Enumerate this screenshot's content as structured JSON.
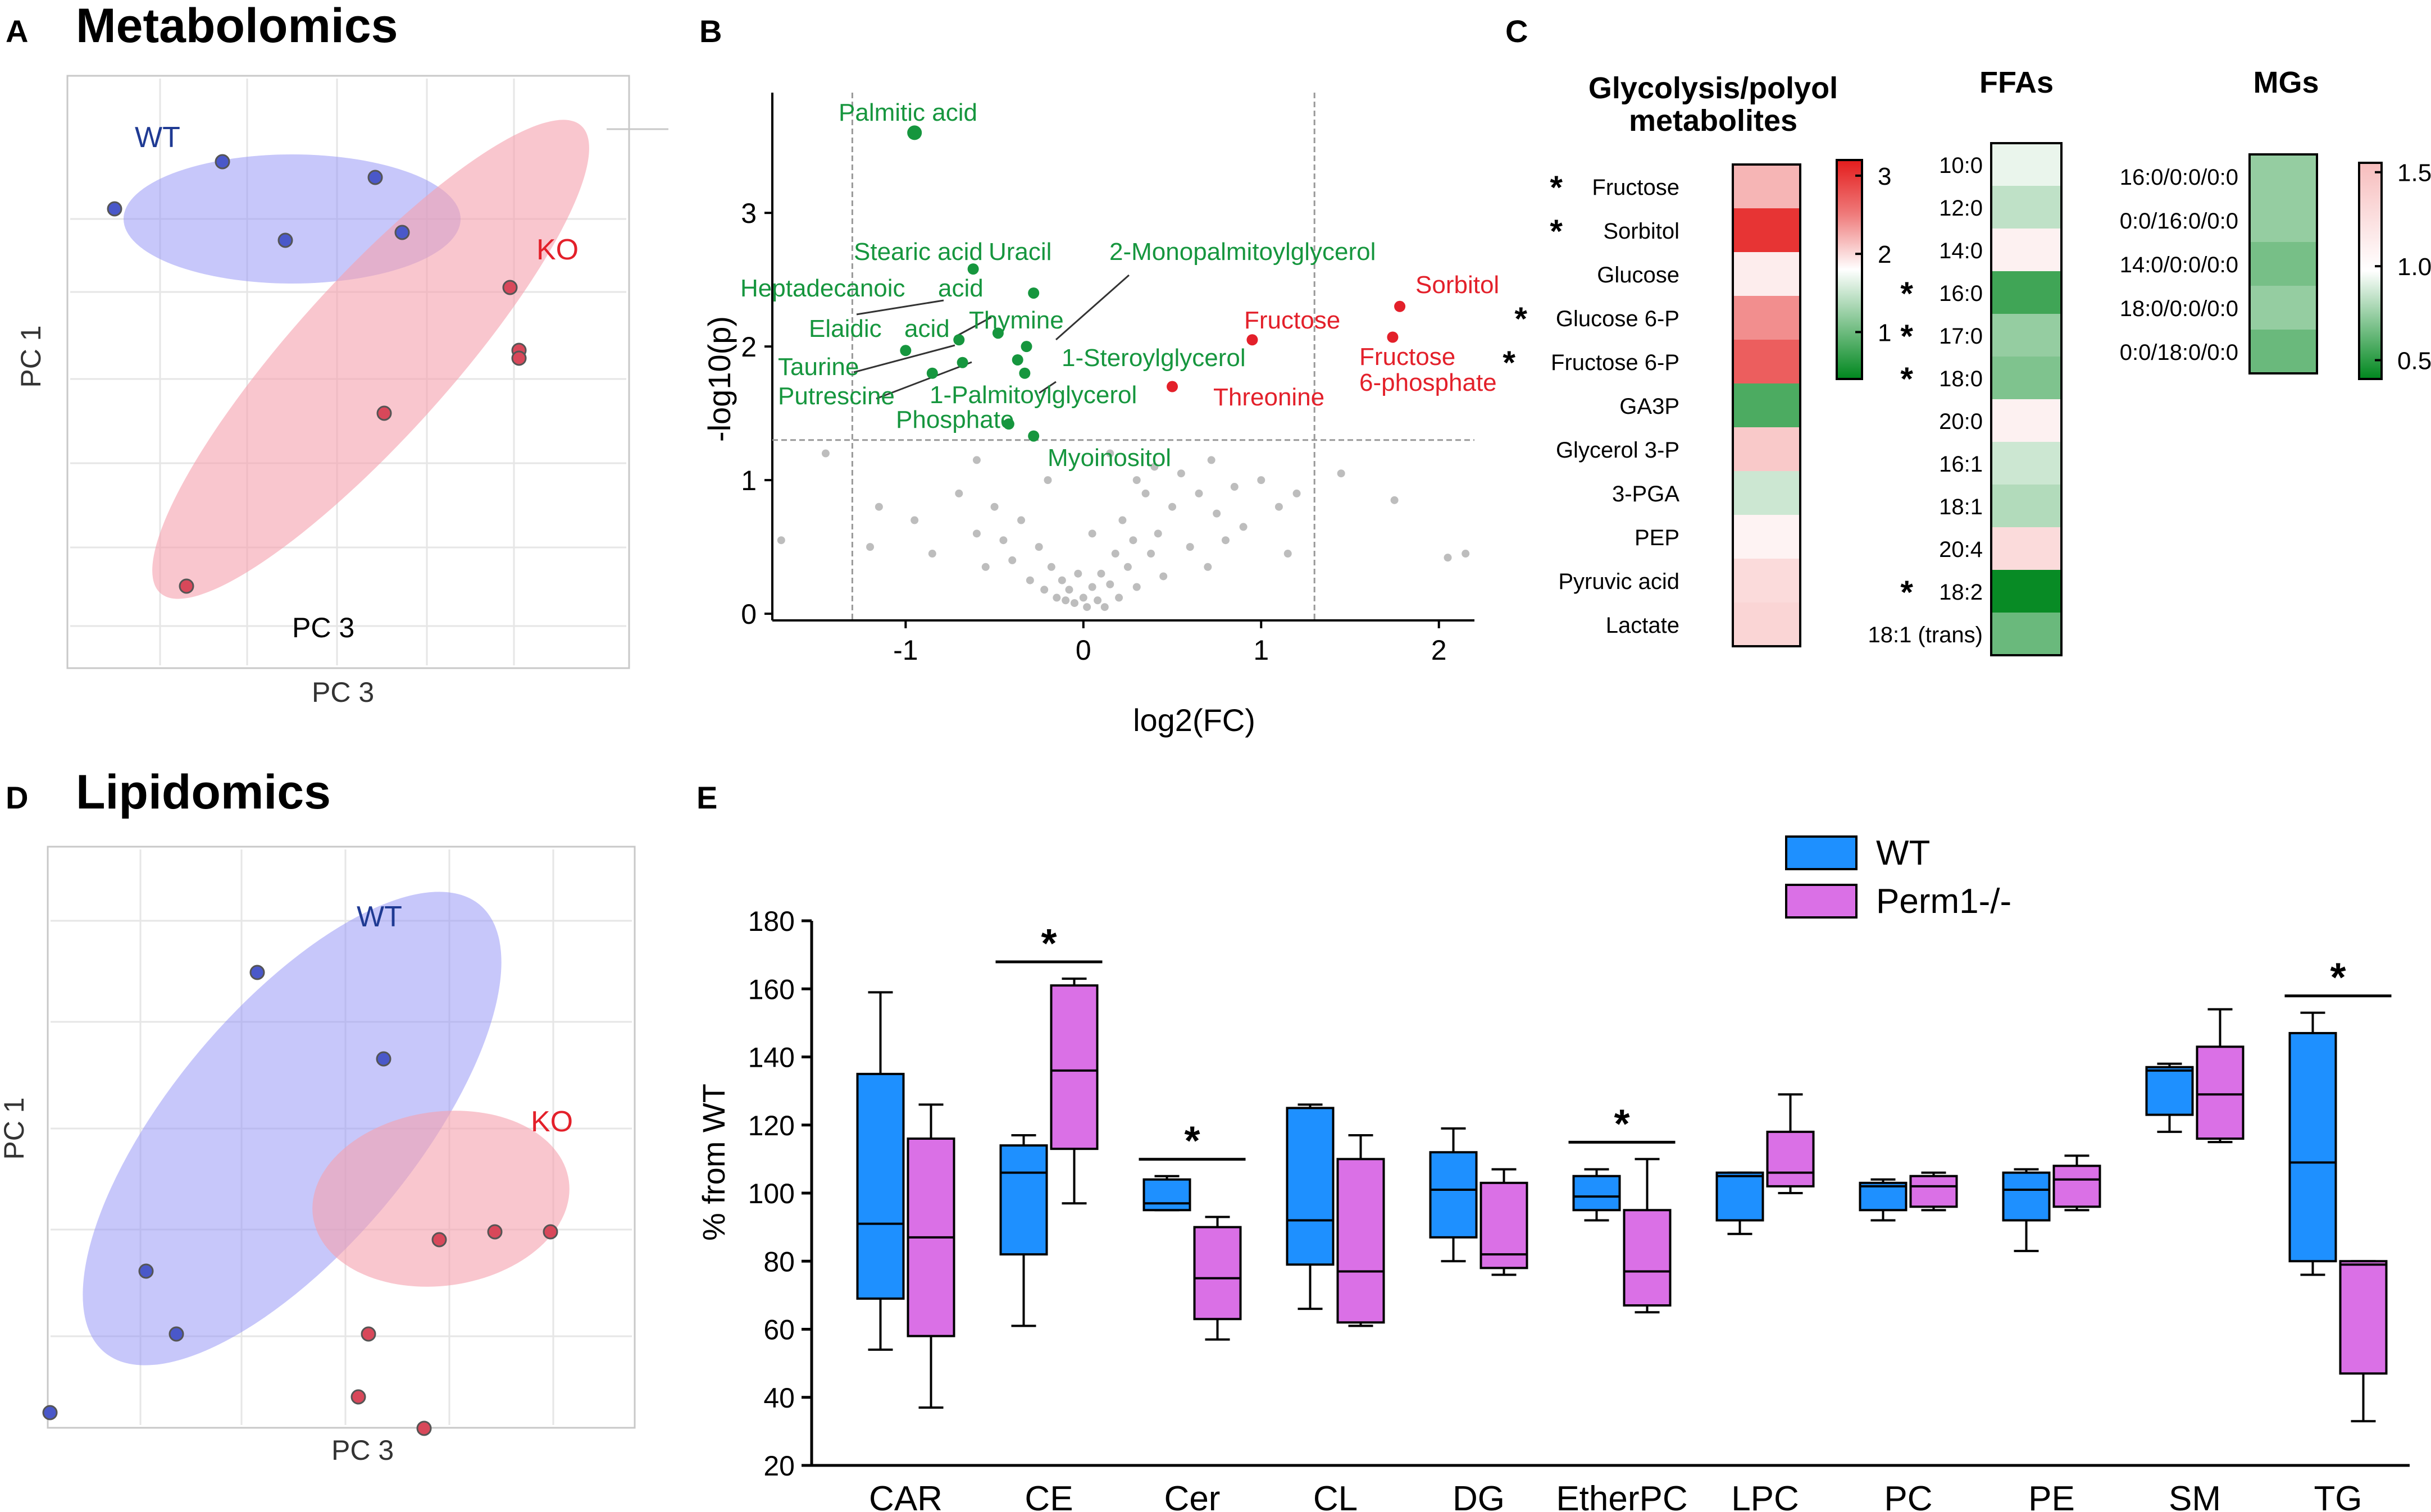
{
  "colors": {
    "wt_dark": "#1f3a93",
    "ko_red": "#e3202a",
    "green": "#16963e",
    "gray": "#bdbdbd",
    "wt_box": "#1e90ff",
    "ko_box": "#da70e6",
    "wt_ellipse": "#8f8ff5",
    "ko_ellipse": "#f5a0ae"
  },
  "panelA": {
    "letter": "A",
    "title": "Metabolomics",
    "ylabel": "PC 1",
    "xlabel_inner": "PC 3",
    "xlabel": "PC 3",
    "wt_label": "WT",
    "ko_label": "KO",
    "chart_data": {
      "type": "scatter",
      "title": "Metabolomics",
      "xlabel": "PC 3",
      "ylabel": "PC 1",
      "series": [
        {
          "name": "WT",
          "points": [
            [
              -2.6,
              1.1
            ],
            [
              -1.4,
              1.4
            ],
            [
              -0.7,
              0.9
            ],
            [
              0.3,
              1.3
            ],
            [
              0.6,
              0.95
            ]
          ]
        },
        {
          "name": "KO",
          "points": [
            [
              1.8,
              0.6
            ],
            [
              1.9,
              0.2
            ],
            [
              1.9,
              0.15
            ],
            [
              0.4,
              -0.2
            ],
            [
              -1.8,
              -1.3
            ]
          ]
        }
      ]
    }
  },
  "panelB": {
    "letter": "B",
    "xlabel": "log2(FC)",
    "ylabel": "-log10(p)",
    "chart_data": {
      "type": "scatter",
      "title": "",
      "xlabel": "log2(FC)",
      "ylabel": "-log10(p)",
      "xlim": [
        -1.75,
        2.2
      ],
      "ylim": [
        -0.05,
        3.9
      ],
      "xticks": [
        -1,
        0,
        1,
        2
      ],
      "yticks": [
        0,
        1,
        2,
        3
      ],
      "threshold_x": [
        -1.3,
        1.3
      ],
      "threshold_y": 1.3,
      "labeled_points": [
        {
          "name": "Palmitic acid",
          "x": -0.95,
          "y": 3.6,
          "class": "down"
        },
        {
          "name": "Stearic acid",
          "x": -0.62,
          "y": 2.58,
          "class": "down"
        },
        {
          "name": "Uracil",
          "x": -0.28,
          "y": 2.4,
          "class": "down"
        },
        {
          "name": "Heptadecanoic acid",
          "x": -0.7,
          "y": 2.05,
          "class": "down"
        },
        {
          "name": "Thymine",
          "x": -0.48,
          "y": 2.1,
          "class": "down"
        },
        {
          "name": "2-Monopalmitoylglycerol",
          "x": -0.32,
          "y": 2.0,
          "class": "down"
        },
        {
          "name": "Elaidic acid",
          "x": -1.0,
          "y": 1.97,
          "class": "down"
        },
        {
          "name": "1-Steroylglycerol",
          "x": -0.37,
          "y": 1.9,
          "class": "down"
        },
        {
          "name": "Taurine",
          "x": -0.68,
          "y": 1.88,
          "class": "down"
        },
        {
          "name": "Putrescine",
          "x": -0.85,
          "y": 1.8,
          "class": "down"
        },
        {
          "name": "1-Palmitoylglycerol",
          "x": -0.33,
          "y": 1.8,
          "class": "down"
        },
        {
          "name": "Phosphate",
          "x": -0.42,
          "y": 1.42,
          "class": "down"
        },
        {
          "name": "Myoinositol",
          "x": -0.28,
          "y": 1.33,
          "class": "down"
        },
        {
          "name": "Sorbitol",
          "x": 1.78,
          "y": 2.3,
          "class": "up"
        },
        {
          "name": "Fructose 6-phosphate",
          "x": 1.74,
          "y": 2.07,
          "class": "up"
        },
        {
          "name": "Fructose",
          "x": 0.95,
          "y": 2.05,
          "class": "up"
        },
        {
          "name": "Threonine",
          "x": 0.5,
          "y": 1.7,
          "class": "up"
        }
      ],
      "other_points": [
        [
          -1.7,
          0.55
        ],
        [
          -1.45,
          1.2
        ],
        [
          -1.15,
          0.8
        ],
        [
          -0.95,
          0.7
        ],
        [
          -0.85,
          0.45
        ],
        [
          -0.7,
          0.9
        ],
        [
          -0.6,
          0.6
        ],
        [
          -0.55,
          0.35
        ],
        [
          -0.5,
          0.8
        ],
        [
          -0.45,
          0.55
        ],
        [
          -0.4,
          0.4
        ],
        [
          -0.35,
          0.7
        ],
        [
          -0.3,
          0.25
        ],
        [
          -0.25,
          0.5
        ],
        [
          -0.22,
          0.18
        ],
        [
          -0.18,
          0.35
        ],
        [
          -0.15,
          0.12
        ],
        [
          -0.12,
          0.25
        ],
        [
          -0.1,
          0.1
        ],
        [
          -0.08,
          0.18
        ],
        [
          -0.05,
          0.08
        ],
        [
          -0.03,
          0.3
        ],
        [
          0.0,
          0.12
        ],
        [
          0.02,
          0.05
        ],
        [
          0.05,
          0.2
        ],
        [
          0.08,
          0.1
        ],
        [
          0.1,
          0.3
        ],
        [
          0.12,
          0.05
        ],
        [
          0.15,
          0.22
        ],
        [
          0.18,
          0.45
        ],
        [
          0.2,
          0.12
        ],
        [
          0.22,
          0.7
        ],
        [
          0.25,
          0.35
        ],
        [
          0.28,
          0.55
        ],
        [
          0.3,
          0.2
        ],
        [
          0.35,
          0.9
        ],
        [
          0.38,
          0.45
        ],
        [
          0.4,
          1.1
        ],
        [
          0.42,
          0.6
        ],
        [
          0.45,
          0.28
        ],
        [
          0.5,
          0.8
        ],
        [
          0.55,
          1.05
        ],
        [
          0.6,
          0.5
        ],
        [
          0.65,
          0.9
        ],
        [
          0.7,
          0.35
        ],
        [
          0.72,
          1.15
        ],
        [
          0.75,
          0.75
        ],
        [
          0.8,
          0.55
        ],
        [
          0.85,
          0.95
        ],
        [
          0.9,
          0.65
        ],
        [
          1.0,
          1.0
        ],
        [
          1.1,
          0.8
        ],
        [
          1.15,
          0.45
        ],
        [
          1.2,
          0.9
        ],
        [
          1.45,
          1.05
        ],
        [
          1.75,
          0.85
        ],
        [
          2.05,
          0.42
        ],
        [
          2.15,
          0.45
        ],
        [
          -0.2,
          1.0
        ],
        [
          0.15,
          1.2
        ],
        [
          -0.6,
          1.15
        ],
        [
          -1.2,
          0.5
        ],
        [
          0.05,
          0.6
        ],
        [
          0.3,
          1.0
        ]
      ]
    }
  },
  "panelC": {
    "letter": "C",
    "chart_data": {
      "type": "heatmap",
      "groups": [
        {
          "title_line1": "Glycolysis/polyol",
          "title_line2": "metabolites",
          "rows": [
            {
              "label": "Fructose",
              "star": true,
              "value": 1.62
            },
            {
              "label": "Sorbitol",
              "star": true,
              "value": 2.7
            },
            {
              "label": "Glucose",
              "star": false,
              "value": 1.15
            },
            {
              "label": "Glucose 6-P",
              "star": true,
              "value": 1.95
            },
            {
              "label": "Fructose 6-P",
              "star": true,
              "value": 2.35
            },
            {
              "label": "GA3P",
              "star": false,
              "value": 0.58
            },
            {
              "label": "Glycerol 3-P",
              "star": false,
              "value": 1.45
            },
            {
              "label": "3-PGA",
              "star": false,
              "value": 0.88
            },
            {
              "label": "PEP",
              "star": false,
              "value": 1.1
            },
            {
              "label": "Pyruvic acid",
              "star": false,
              "value": 1.3
            },
            {
              "label": "Lactate",
              "star": false,
              "value": 1.35
            }
          ]
        },
        {
          "title_line1": "FFAs",
          "title_line2": "",
          "rows": [
            {
              "label": "10:0",
              "star": false,
              "value": 0.95
            },
            {
              "label": "12:0",
              "star": false,
              "value": 0.85
            },
            {
              "label": "14:0",
              "star": false,
              "value": 1.12
            },
            {
              "label": "16:0",
              "star": true,
              "value": 0.55
            },
            {
              "label": "17:0",
              "star": true,
              "value": 0.75
            },
            {
              "label": "18:0",
              "star": true,
              "value": 0.7
            },
            {
              "label": "20:0",
              "star": false,
              "value": 1.12
            },
            {
              "label": "16:1",
              "star": false,
              "value": 0.88
            },
            {
              "label": "18:1",
              "star": false,
              "value": 0.82
            },
            {
              "label": "20:4",
              "star": false,
              "value": 1.3
            },
            {
              "label": "18:2",
              "star": true,
              "value": 0.42
            },
            {
              "label": "18:1 (trans)",
              "star": false,
              "value": 0.65
            }
          ]
        },
        {
          "title_line1": "MGs",
          "title_line2": "",
          "rows": [
            {
              "label": "16:0/0:0/0:0",
              "star": false,
              "value": 0.75
            },
            {
              "label": "0:0/16:0/0:0",
              "star": false,
              "value": 0.75
            },
            {
              "label": "14:0/0:0/0:0",
              "star": false,
              "value": 0.68
            },
            {
              "label": "18:0/0:0/0:0",
              "star": false,
              "value": 0.75
            },
            {
              "label": "0:0/18:0/0:0",
              "star": false,
              "value": 0.65
            }
          ]
        }
      ],
      "colorbar1": {
        "ticks": [
          "3",
          "2",
          "1"
        ],
        "range": [
          0.4,
          3.2
        ]
      },
      "colorbar2": {
        "ticks": [
          "1.5",
          "1.0",
          "0.5"
        ],
        "range": [
          0.4,
          1.55
        ]
      }
    }
  },
  "panelD": {
    "letter": "D",
    "title": "Lipidomics",
    "ylabel": "PC 1",
    "xlabel": "PC 3",
    "wt_label": "WT",
    "ko_label": "KO",
    "chart_data": {
      "type": "scatter",
      "title": "Lipidomics",
      "xlabel": "PC 3",
      "ylabel": "PC 1",
      "series": [
        {
          "name": "WT",
          "points": [
            [
              -0.9,
              1.35
            ],
            [
              0.35,
              0.8
            ],
            [
              -2.0,
              -0.55
            ],
            [
              -1.7,
              -0.95
            ],
            [
              -2.95,
              -1.45
            ]
          ]
        },
        {
          "name": "KO",
          "points": [
            [
              2.0,
              -0.3
            ],
            [
              0.9,
              -0.35
            ],
            [
              1.45,
              -0.3
            ],
            [
              0.2,
              -0.95
            ],
            [
              0.1,
              -1.35
            ],
            [
              0.75,
              -1.55
            ]
          ]
        }
      ]
    }
  },
  "panelE": {
    "letter": "E",
    "ylabel": "% from WT",
    "legend": [
      "WT",
      "Perm1-/-"
    ],
    "chart_data": {
      "type": "box",
      "ylabel": "% from WT",
      "ylim": [
        20,
        180
      ],
      "yticks": [
        20,
        40,
        60,
        80,
        100,
        120,
        140,
        160,
        180
      ],
      "categories": [
        "CAR",
        "CE",
        "Cer",
        "CL",
        "DG",
        "EtherPC",
        "LPC",
        "PC",
        "PE",
        "SM",
        "TG"
      ],
      "significant": [
        false,
        true,
        true,
        false,
        false,
        true,
        false,
        false,
        false,
        false,
        true
      ],
      "series": [
        {
          "name": "WT",
          "boxes": [
            [
              54,
              69,
              91,
              135,
              159
            ],
            [
              61,
              82,
              106,
              114,
              117
            ],
            [
              95,
              95,
              97,
              104,
              105
            ],
            [
              66,
              79,
              92,
              125,
              126
            ],
            [
              80,
              87,
              101,
              112,
              119
            ],
            [
              92,
              95,
              99,
              105,
              107
            ],
            [
              88,
              92,
              105,
              106,
              106
            ],
            [
              92,
              95,
              102,
              103,
              104
            ],
            [
              83,
              92,
              101,
              106,
              107
            ],
            [
              118,
              123,
              136,
              137,
              138
            ],
            [
              76,
              80,
              109,
              147,
              153
            ]
          ]
        },
        {
          "name": "Perm1-/-",
          "boxes": [
            [
              37,
              58,
              87,
              116,
              126
            ],
            [
              97,
              113,
              136,
              161,
              163
            ],
            [
              57,
              63,
              75,
              90,
              93
            ],
            [
              61,
              62,
              77,
              110,
              117
            ],
            [
              76,
              78,
              82,
              103,
              107
            ],
            [
              65,
              67,
              77,
              95,
              110
            ],
            [
              100,
              102,
              106,
              118,
              129
            ],
            [
              95,
              96,
              102,
              105,
              106
            ],
            [
              95,
              96,
              104,
              108,
              111
            ],
            [
              115,
              116,
              129,
              143,
              154
            ],
            [
              33,
              47,
              79,
              80,
              80
            ]
          ]
        }
      ]
    }
  }
}
